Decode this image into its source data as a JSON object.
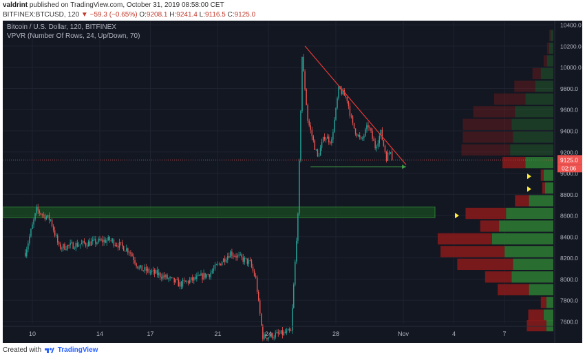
{
  "header": {
    "author": "valdrint",
    "published": "published on TradingView.com, October 31, 2019 08:58:00 CET",
    "symbol": "BITFINEX:BTCUSD, 120",
    "change_arrow": "▼",
    "change": "−59.3 (−0.65%)",
    "open_label": "O:",
    "open": "9208.1",
    "high_label": "H:",
    "high": "9241.4",
    "low_label": "L:",
    "low": "9116.5",
    "close_label": "C:",
    "close": "9125.0"
  },
  "legend": {
    "title": "Bitcoin / U.S. Dollar, 120, BITFINEX",
    "vpvr": "VPVR (Number Of Rows, 24, Up/Down, 70)"
  },
  "footer": {
    "created_with": "Created with",
    "brand": "TradingView"
  },
  "colors": {
    "background": "#131722",
    "grid": "#1f2330",
    "up": "#26a69a",
    "down": "#ef5350",
    "vp_up": "#2e7d32",
    "vp_down": "#8b1a1a",
    "trendline": "#e53935",
    "support": "#43a047",
    "zone": "#1b5e20",
    "price_label": "#ef5350"
  },
  "chart_data": {
    "type": "candlestick",
    "ylim": [
      7580,
      10440
    ],
    "y_ticks": [
      "10400.0",
      "10200.0",
      "10000.0",
      "9800.0",
      "9600.0",
      "9400.0",
      "9200.0",
      "9000.0",
      "8800.0",
      "8600.0",
      "8400.0",
      "8200.0",
      "8000.0",
      "7800.0",
      "7600.0"
    ],
    "x_ticks": [
      "10",
      "14",
      "17",
      "21",
      "24",
      "28",
      "Nov",
      "4",
      "7"
    ],
    "current_price": "9125.0",
    "countdown": "02:06",
    "trend_key_points": [
      {
        "date": "Oct 9 14:00",
        "price": 8250
      },
      {
        "date": "Oct 10 06:00",
        "price": 8650
      },
      {
        "date": "Oct 11 02:00",
        "price": 8560
      },
      {
        "date": "Oct 11 14:00",
        "price": 8300
      },
      {
        "date": "Oct 14 14:00",
        "price": 8370
      },
      {
        "date": "Oct 15 18:00",
        "price": 8270
      },
      {
        "date": "Oct 16 08:00",
        "price": 8100
      },
      {
        "date": "Oct 17 14:00",
        "price": 8040
      },
      {
        "date": "Oct 18 18:00",
        "price": 7950
      },
      {
        "date": "Oct 20 12:00",
        "price": 8050
      },
      {
        "date": "Oct 21 18:00",
        "price": 8250
      },
      {
        "date": "Oct 22 22:00",
        "price": 8150
      },
      {
        "date": "Oct 23 06:00",
        "price": 8000
      },
      {
        "date": "Oct 23 16:00",
        "price": 7450
      },
      {
        "date": "Oct 25 08:00",
        "price": 7500
      },
      {
        "date": "Oct 25 18:00",
        "price": 8600
      },
      {
        "date": "Oct 26 00:00",
        "price": 10100
      },
      {
        "date": "Oct 26 08:00",
        "price": 9500
      },
      {
        "date": "Oct 26 22:00",
        "price": 9150
      },
      {
        "date": "Oct 27 08:00",
        "price": 9350
      },
      {
        "date": "Oct 27 18:00",
        "price": 9300
      },
      {
        "date": "Oct 28 04:00",
        "price": 9800
      },
      {
        "date": "Oct 28 16:00",
        "price": 9700
      },
      {
        "date": "Oct 29 00:00",
        "price": 9450
      },
      {
        "date": "Oct 29 12:00",
        "price": 9300
      },
      {
        "date": "Oct 29 22:00",
        "price": 9450
      },
      {
        "date": "Oct 30 08:00",
        "price": 9250
      },
      {
        "date": "Oct 30 16:00",
        "price": 9380
      },
      {
        "date": "Oct 31 00:00",
        "price": 9150
      },
      {
        "date": "Oct 31 06:00",
        "price": 9220
      },
      {
        "date": "Oct 31 08:00",
        "price": 9125
      }
    ],
    "resistance_trendline": [
      {
        "date": "Oct 26 04:00",
        "price": 10200
      },
      {
        "date": "Nov 1 04:00",
        "price": 9080
      }
    ],
    "support_line": [
      {
        "date": "Oct 26 12:00",
        "price": 9060
      },
      {
        "date": "Nov 1 04:00",
        "price": 9060
      }
    ],
    "support_zone": [
      8580,
      8680
    ],
    "volume_profile": [
      {
        "price": 10300,
        "up": 4,
        "down": 2
      },
      {
        "price": 10180,
        "up": 6,
        "down": 3
      },
      {
        "price": 10060,
        "up": 9,
        "down": 5
      },
      {
        "price": 9940,
        "up": 18,
        "down": 12
      },
      {
        "price": 9820,
        "up": 26,
        "down": 30
      },
      {
        "price": 9700,
        "up": 40,
        "down": 45
      },
      {
        "price": 9580,
        "up": 55,
        "down": 60
      },
      {
        "price": 9460,
        "up": 60,
        "down": 70
      },
      {
        "price": 9340,
        "up": 58,
        "down": 72
      },
      {
        "price": 9220,
        "up": 62,
        "down": 70
      },
      {
        "price": 9100,
        "up": 40,
        "down": 33
      },
      {
        "price": 8980,
        "up": 14,
        "down": 4
      },
      {
        "price": 8860,
        "up": 12,
        "down": 4
      },
      {
        "price": 8740,
        "up": 35,
        "down": 20
      },
      {
        "price": 8620,
        "up": 68,
        "down": 58
      },
      {
        "price": 8500,
        "up": 78,
        "down": 27
      },
      {
        "price": 8380,
        "up": 88,
        "down": 78
      },
      {
        "price": 8260,
        "up": 70,
        "down": 92
      },
      {
        "price": 8140,
        "up": 58,
        "down": 80
      },
      {
        "price": 8020,
        "up": 60,
        "down": 38
      },
      {
        "price": 7900,
        "up": 35,
        "down": 45
      },
      {
        "price": 7780,
        "up": 10,
        "down": 8
      },
      {
        "price": 7660,
        "up": 14,
        "down": 22
      },
      {
        "price": 7560,
        "up": 10,
        "down": 28
      }
    ]
  }
}
